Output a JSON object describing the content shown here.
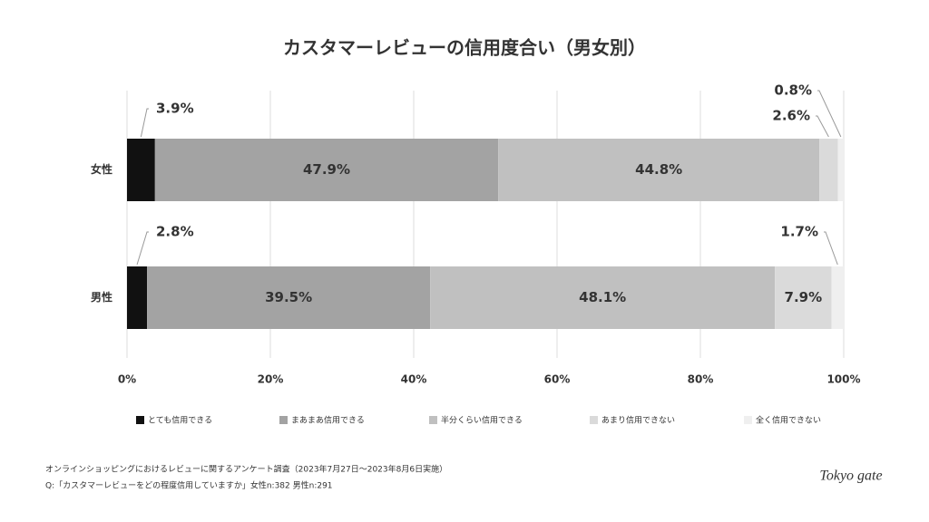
{
  "chart_data": {
    "type": "stacked-barh",
    "title": "カスタマーレビューの信用度合い（男女別）",
    "categories": [
      "女性",
      "男性"
    ],
    "series": [
      {
        "name": "とても信用できる",
        "color": "#111111",
        "values": [
          3.9,
          2.8
        ],
        "value_labels": [
          "3.9%",
          "2.8%"
        ]
      },
      {
        "name": "まあまあ信用できる",
        "color": "#a3a3a3",
        "values": [
          47.9,
          39.5
        ],
        "value_labels": [
          "47.9%",
          "39.5%"
        ]
      },
      {
        "name": "半分くらい信用できる",
        "color": "#c0c0c0",
        "values": [
          44.8,
          48.1
        ],
        "value_labels": [
          "44.8%",
          "48.1%"
        ]
      },
      {
        "name": "あまり信用できない",
        "color": "#dadada",
        "values": [
          2.6,
          7.9
        ],
        "value_labels": [
          "2.6%",
          "7.9%"
        ]
      },
      {
        "name": "全く信用できない",
        "color": "#efefef",
        "values": [
          0.8,
          1.7
        ],
        "value_labels": [
          "0.8%",
          "1.7%"
        ]
      }
    ],
    "xlim": [
      0,
      100
    ],
    "xticks": [
      {
        "value": 0,
        "label": "0%"
      },
      {
        "value": 20,
        "label": "20%"
      },
      {
        "value": 40,
        "label": "40%"
      },
      {
        "value": 60,
        "label": "60%"
      },
      {
        "value": 80,
        "label": "80%"
      },
      {
        "value": 100,
        "label": "100%"
      }
    ],
    "grid": true,
    "legend": "bottom",
    "notes": [
      "オンラインショッピングにおけるレビューに関するアンケート調査（2023年7月27日〜2023年8月6日実施）",
      "Q:「カスタマーレビューをどの程度信用していますか」女性n:382 男性n:291"
    ],
    "logo": "Tokyo gate"
  }
}
